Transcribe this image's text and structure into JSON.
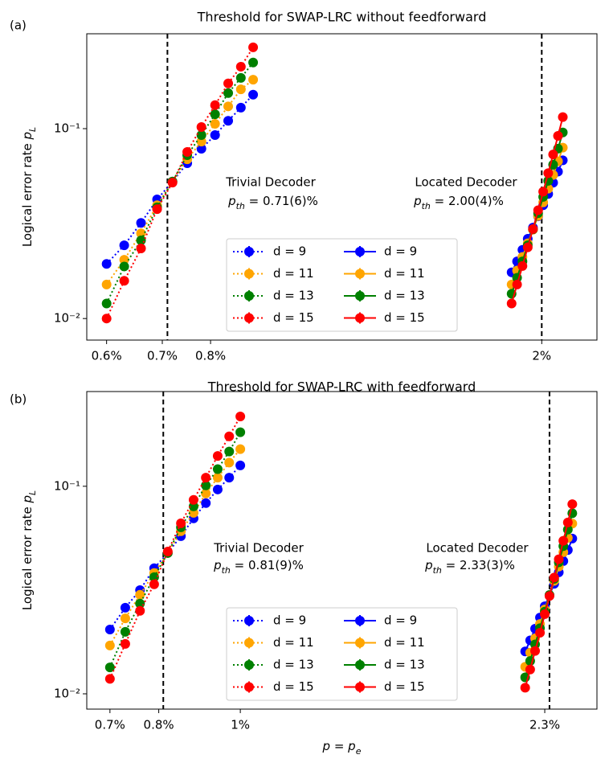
{
  "chart_data": [
    {
      "type": "line",
      "panel_label": "(a)",
      "title": "Threshold for SWAP-LRC without feedforward",
      "ylabel": [
        "Logical error rate ",
        "p",
        "L"
      ],
      "xlog": true,
      "ylog": true,
      "xlim": [
        0.568,
        2.33
      ],
      "ylim": [
        0.0077,
        0.316
      ],
      "xticks": [
        {
          "value": 0.6,
          "label": "0.6%"
        },
        {
          "value": 0.7,
          "label": "0.7%"
        },
        {
          "value": 0.8,
          "label": "0.8%"
        },
        {
          "value": 2,
          "label": "2%"
        }
      ],
      "yticks": [
        {
          "value": 0.01,
          "label": "10⁻²"
        },
        {
          "value": 0.1,
          "label": "10⁻¹"
        }
      ],
      "vlines": [
        0.71,
        2.0
      ],
      "legend_loc": "lower center",
      "annotations": [
        {
          "title": "Trivial Decoder",
          "parts": [
            "p",
            "th",
            " = 0.71(6)%"
          ]
        },
        {
          "title": "Located Decoder",
          "parts": [
            "p",
            "th",
            " = 2.00(4)%"
          ]
        }
      ],
      "series": [
        {
          "name": "d = 9",
          "color": "#0000ff",
          "linestyle": "dotted",
          "x": [
            0.6,
            0.63,
            0.66,
            0.69,
            0.72,
            0.75,
            0.78,
            0.81,
            0.84,
            0.87,
            0.9
          ],
          "values": [
            0.0194,
            0.0243,
            0.0319,
            0.0424,
            0.0526,
            0.0658,
            0.0784,
            0.0925,
            0.11,
            0.129,
            0.151
          ]
        },
        {
          "name": "d = 11",
          "color": "#ffa500",
          "linestyle": "dotted",
          "x": [
            0.6,
            0.63,
            0.66,
            0.69,
            0.72,
            0.75,
            0.78,
            0.81,
            0.84,
            0.87,
            0.9
          ],
          "values": [
            0.0151,
            0.0204,
            0.0281,
            0.0395,
            0.0526,
            0.069,
            0.0855,
            0.106,
            0.131,
            0.161,
            0.181
          ]
        },
        {
          "name": "d = 13",
          "color": "#008000",
          "linestyle": "dotted",
          "x": [
            0.6,
            0.63,
            0.66,
            0.69,
            0.72,
            0.75,
            0.78,
            0.81,
            0.84,
            0.87,
            0.9
          ],
          "values": [
            0.012,
            0.0188,
            0.0258,
            0.0385,
            0.0526,
            0.0725,
            0.0925,
            0.119,
            0.154,
            0.185,
            0.223
          ]
        },
        {
          "name": "d = 15",
          "color": "#ff0000",
          "linestyle": "dotted",
          "x": [
            0.6,
            0.63,
            0.66,
            0.69,
            0.72,
            0.75,
            0.78,
            0.81,
            0.84,
            0.87,
            0.9
          ],
          "values": [
            0.01,
            0.0158,
            0.0234,
            0.0377,
            0.052,
            0.0754,
            0.102,
            0.133,
            0.173,
            0.212,
            0.268
          ]
        },
        {
          "name": "d = 9",
          "color": "#0000ff",
          "linestyle": "solid",
          "x": [
            1.84,
            1.868,
            1.896,
            1.924,
            1.952,
            1.98,
            2.008,
            2.036,
            2.064,
            2.092,
            2.12
          ],
          "values": [
            0.0175,
            0.02,
            0.023,
            0.0263,
            0.0301,
            0.0345,
            0.0395,
            0.0453,
            0.0519,
            0.0594,
            0.0681
          ]
        },
        {
          "name": "d = 11",
          "color": "#ffa500",
          "linestyle": "solid",
          "x": [
            1.84,
            1.868,
            1.896,
            1.924,
            1.952,
            1.98,
            2.008,
            2.036,
            2.064,
            2.092,
            2.12
          ],
          "values": [
            0.0151,
            0.0179,
            0.0211,
            0.0249,
            0.0294,
            0.0347,
            0.0409,
            0.0483,
            0.057,
            0.0673,
            0.0794
          ]
        },
        {
          "name": "d = 13",
          "color": "#008000",
          "linestyle": "solid",
          "x": [
            1.84,
            1.868,
            1.896,
            1.924,
            1.952,
            1.98,
            2.008,
            2.036,
            2.064,
            2.092,
            2.12
          ],
          "values": [
            0.0135,
            0.0164,
            0.02,
            0.0243,
            0.0295,
            0.0359,
            0.0437,
            0.0531,
            0.0646,
            0.0785,
            0.0955
          ]
        },
        {
          "name": "d = 15",
          "color": "#ff0000",
          "linestyle": "solid",
          "x": [
            1.84,
            1.868,
            1.896,
            1.924,
            1.952,
            1.98,
            2.008,
            2.036,
            2.064,
            2.092,
            2.12
          ],
          "values": [
            0.012,
            0.0151,
            0.0189,
            0.0237,
            0.0296,
            0.0372,
            0.0466,
            0.0583,
            0.0731,
            0.0916,
            0.115
          ]
        }
      ]
    },
    {
      "type": "line",
      "panel_label": "(b)",
      "title": "Threshold for SWAP-LRC with feedforward",
      "ylabel": [
        "Logical error rate ",
        "p",
        "L"
      ],
      "xlabel": [
        "p",
        " = ",
        "p",
        "e"
      ],
      "xlog": true,
      "ylog": true,
      "xlim": [
        0.657,
        2.653
      ],
      "ylim": [
        0.00844,
        0.286
      ],
      "xticks": [
        {
          "value": 0.7,
          "label": "0.7%"
        },
        {
          "value": 0.8,
          "label": "0.8%"
        },
        {
          "value": 1,
          "label": "1%"
        },
        {
          "value": 2.3,
          "label": "2.3%"
        }
      ],
      "yticks": [
        {
          "value": 0.01,
          "label": "10⁻²"
        },
        {
          "value": 0.1,
          "label": "10⁻¹"
        }
      ],
      "vlines": [
        0.81,
        2.33
      ],
      "legend_loc": "lower center",
      "annotations": [
        {
          "title": "Trivial Decoder",
          "parts": [
            "p",
            "th",
            " = 0.81(9)%"
          ]
        },
        {
          "title": "Located Decoder",
          "parts": [
            "p",
            "th",
            " = 2.33(3)%"
          ]
        }
      ],
      "series": [
        {
          "name": "d = 9",
          "color": "#0000ff",
          "linestyle": "dotted",
          "x": [
            0.7,
            0.73,
            0.76,
            0.79,
            0.82,
            0.85,
            0.88,
            0.91,
            0.94,
            0.97,
            1.0
          ],
          "values": [
            0.0204,
            0.026,
            0.0316,
            0.0403,
            0.0477,
            0.0575,
            0.07,
            0.083,
            0.0965,
            0.11,
            0.126
          ]
        },
        {
          "name": "d = 11",
          "color": "#ffa500",
          "linestyle": "dotted",
          "x": [
            0.7,
            0.73,
            0.76,
            0.79,
            0.82,
            0.85,
            0.88,
            0.91,
            0.94,
            0.97,
            1.0
          ],
          "values": [
            0.0171,
            0.0231,
            0.03,
            0.0382,
            0.0477,
            0.0607,
            0.0745,
            0.0923,
            0.11,
            0.13,
            0.151
          ]
        },
        {
          "name": "d = 13",
          "color": "#008000",
          "linestyle": "dotted",
          "x": [
            0.7,
            0.73,
            0.76,
            0.79,
            0.82,
            0.85,
            0.88,
            0.91,
            0.94,
            0.97,
            1.0
          ],
          "values": [
            0.0134,
            0.0199,
            0.0272,
            0.0365,
            0.0477,
            0.0634,
            0.08,
            0.101,
            0.121,
            0.147,
            0.182
          ]
        },
        {
          "name": "d = 15",
          "color": "#ff0000",
          "linestyle": "dotted",
          "x": [
            0.7,
            0.73,
            0.76,
            0.79,
            0.82,
            0.85,
            0.88,
            0.91,
            0.94,
            0.97,
            1.0
          ],
          "values": [
            0.0118,
            0.0174,
            0.0251,
            0.0337,
            0.0485,
            0.0663,
            0.086,
            0.11,
            0.14,
            0.174,
            0.217
          ]
        },
        {
          "name": "d = 9",
          "color": "#0000ff",
          "linestyle": "solid",
          "x": [
            2.18,
            2.21,
            2.24,
            2.27,
            2.3,
            2.33,
            2.36,
            2.39,
            2.42,
            2.45,
            2.48
          ],
          "values": [
            0.016,
            0.0181,
            0.0206,
            0.0233,
            0.0264,
            0.0299,
            0.0339,
            0.0385,
            0.0436,
            0.0493,
            0.056
          ]
        },
        {
          "name": "d = 11",
          "color": "#ffa500",
          "linestyle": "solid",
          "x": [
            2.18,
            2.21,
            2.24,
            2.27,
            2.3,
            2.33,
            2.36,
            2.39,
            2.42,
            2.45,
            2.48
          ],
          "values": [
            0.0135,
            0.0158,
            0.0185,
            0.0217,
            0.0255,
            0.0299,
            0.035,
            0.041,
            0.0481,
            0.0564,
            0.0661
          ]
        },
        {
          "name": "d = 13",
          "color": "#008000",
          "linestyle": "solid",
          "x": [
            2.18,
            2.21,
            2.24,
            2.27,
            2.3,
            2.33,
            2.36,
            2.39,
            2.42,
            2.45,
            2.48
          ],
          "values": [
            0.012,
            0.0144,
            0.0173,
            0.0207,
            0.0249,
            0.0299,
            0.0358,
            0.043,
            0.0515,
            0.0618,
            0.0741
          ]
        },
        {
          "name": "d = 15",
          "color": "#ff0000",
          "linestyle": "solid",
          "x": [
            2.18,
            2.21,
            2.24,
            2.27,
            2.3,
            2.33,
            2.36,
            2.39,
            2.42,
            2.45,
            2.48
          ],
          "values": [
            0.0107,
            0.0131,
            0.0161,
            0.0197,
            0.0242,
            0.0296,
            0.0363,
            0.0445,
            0.0546,
            0.0669,
            0.082
          ]
        }
      ]
    }
  ]
}
